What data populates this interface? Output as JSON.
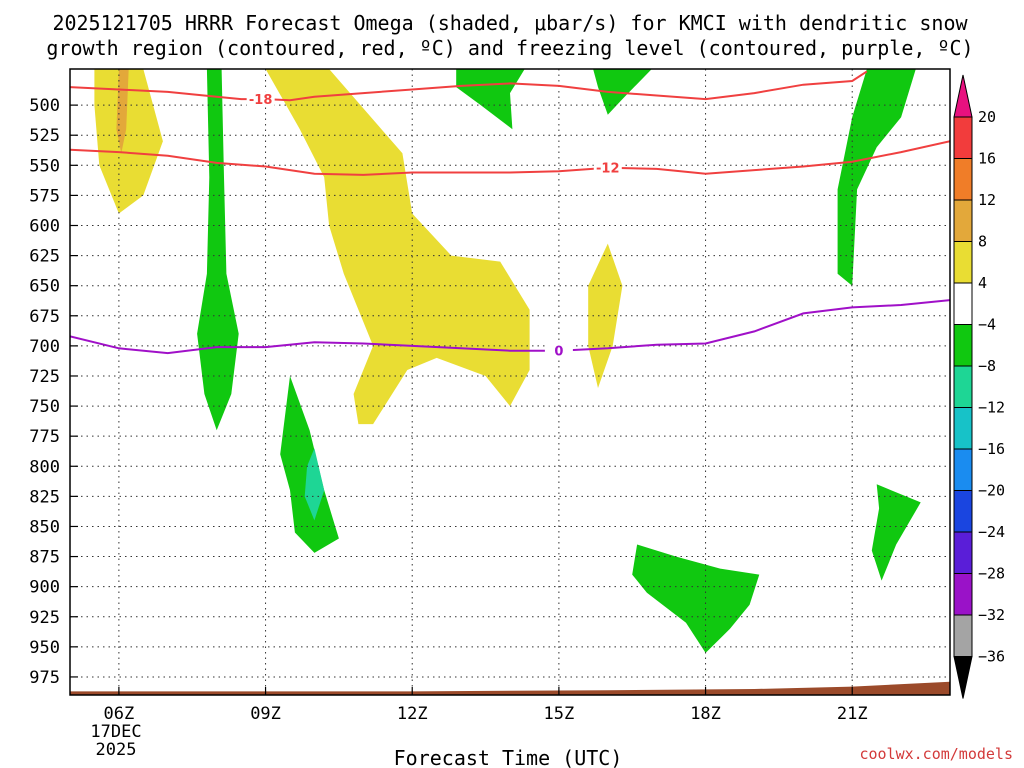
{
  "chart_data": {
    "type": "heatmap",
    "title_line1": "2025121705 HRRR Forecast Omega (shaded, μbar/s) for KMCI with dendritic snow",
    "title_line2": "growth region (contoured, red, ºC) and freezing level (contoured, purple, ºC)",
    "xlabel": "Forecast Time (UTC)",
    "ylabel": "",
    "x_hours": [
      6,
      9,
      12,
      15,
      18,
      21
    ],
    "x_tick_labels": [
      "06Z",
      "09Z",
      "12Z",
      "15Z",
      "18Z",
      "21Z"
    ],
    "date_label_line1": "17DEC",
    "date_label_line2": "2025",
    "xlim": [
      5,
      23
    ],
    "y_levels": [
      500,
      525,
      550,
      575,
      600,
      625,
      650,
      675,
      700,
      725,
      750,
      775,
      800,
      825,
      850,
      875,
      900,
      925,
      950,
      975
    ],
    "y_tick_labels": [
      "500",
      "525",
      "550",
      "575",
      "600",
      "625",
      "650",
      "675",
      "700",
      "725",
      "750",
      "775",
      "800",
      "825",
      "850",
      "875",
      "900",
      "925",
      "950",
      "975"
    ],
    "ylim": [
      470,
      990
    ],
    "grid": true,
    "colorbar": {
      "labels": [
        "20",
        "16",
        "12",
        "8",
        "4",
        "−4",
        "−8",
        "−12",
        "−16",
        "−20",
        "−24",
        "−28",
        "−32",
        "−36"
      ],
      "colors": [
        "#e8117f",
        "#f23c3c",
        "#f07d28",
        "#e3a83a",
        "#e9dd33",
        "#ffffff",
        "#10c810",
        "#1ed695",
        "#17c2c8",
        "#1a8cf0",
        "#1a45e0",
        "#5a1ed8",
        "#9a12c8",
        "#a4a4a4",
        "#000000"
      ]
    },
    "contours": {
      "dgz_labels": [
        "-18",
        "-12"
      ],
      "freezing_label": "0",
      "dgz_top_minus18": [
        [
          5,
          485
        ],
        [
          6,
          487
        ],
        [
          7,
          489
        ],
        [
          8,
          493
        ],
        [
          8.5,
          495
        ],
        [
          9,
          495
        ],
        [
          9.5,
          496
        ],
        [
          10,
          493
        ],
        [
          11,
          490
        ],
        [
          12,
          487
        ],
        [
          13,
          484
        ],
        [
          14,
          482
        ],
        [
          15,
          484
        ],
        [
          16,
          489
        ],
        [
          17,
          492
        ],
        [
          18,
          495
        ],
        [
          19,
          490
        ],
        [
          20,
          483
        ],
        [
          21,
          480
        ],
        [
          21.3,
          472
        ]
      ],
      "dgz_bottom_minus12": [
        [
          5,
          537
        ],
        [
          6,
          539
        ],
        [
          7,
          542
        ],
        [
          8,
          548
        ],
        [
          9,
          551
        ],
        [
          10,
          557
        ],
        [
          11,
          558
        ],
        [
          12,
          556
        ],
        [
          13,
          556
        ],
        [
          14,
          556
        ],
        [
          15,
          555
        ],
        [
          16,
          552
        ],
        [
          17,
          553
        ],
        [
          18,
          557
        ],
        [
          19,
          554
        ],
        [
          20,
          551
        ],
        [
          21,
          547
        ],
        [
          22,
          539
        ],
        [
          23,
          530
        ]
      ],
      "freezing_level": [
        [
          5,
          692
        ],
        [
          6,
          702
        ],
        [
          7,
          706
        ],
        [
          8,
          701
        ],
        [
          9,
          701
        ],
        [
          10,
          697
        ],
        [
          11,
          698
        ],
        [
          12,
          700
        ],
        [
          13,
          702
        ],
        [
          14,
          704
        ],
        [
          15,
          704
        ],
        [
          16,
          702
        ],
        [
          17,
          699
        ],
        [
          18,
          698
        ],
        [
          19,
          688
        ],
        [
          20,
          673
        ],
        [
          21,
          668
        ],
        [
          22,
          666
        ],
        [
          23,
          662
        ]
      ]
    },
    "shaded_regions": [
      {
        "omega_class": "4",
        "points": [
          [
            5.5,
            470
          ],
          [
            6.5,
            470
          ],
          [
            6.9,
            530
          ],
          [
            6.5,
            575
          ],
          [
            6.0,
            590
          ],
          [
            5.6,
            550
          ],
          [
            5.5,
            500
          ]
        ]
      },
      {
        "omega_class": "8",
        "points": [
          [
            6.0,
            470
          ],
          [
            6.2,
            470
          ],
          [
            6.15,
            520
          ],
          [
            6.05,
            540
          ],
          [
            5.95,
            520
          ]
        ]
      },
      {
        "omega_class": "-4",
        "points": [
          [
            7.8,
            470
          ],
          [
            8.1,
            470
          ],
          [
            8.15,
            560
          ],
          [
            8.2,
            640
          ],
          [
            8.45,
            690
          ],
          [
            8.3,
            740
          ],
          [
            8.0,
            770
          ],
          [
            7.75,
            740
          ],
          [
            7.6,
            690
          ],
          [
            7.8,
            640
          ],
          [
            7.85,
            560
          ]
        ]
      },
      {
        "omega_class": "4",
        "points": [
          [
            9,
            470
          ],
          [
            10.3,
            470
          ],
          [
            11.8,
            540
          ],
          [
            12.0,
            590
          ],
          [
            12.8,
            625
          ],
          [
            13.8,
            630
          ],
          [
            14.4,
            670
          ],
          [
            14.4,
            720
          ],
          [
            14.0,
            750
          ],
          [
            13.5,
            725
          ],
          [
            12.5,
            710
          ],
          [
            11.9,
            720
          ],
          [
            11.2,
            765
          ],
          [
            10.9,
            765
          ],
          [
            10.8,
            740
          ],
          [
            11.2,
            700
          ],
          [
            10.6,
            640
          ],
          [
            10.3,
            600
          ],
          [
            10.2,
            560
          ],
          [
            9.7,
            520
          ]
        ]
      },
      {
        "omega_class": "-4",
        "points": [
          [
            12.9,
            470
          ],
          [
            14.3,
            470
          ],
          [
            14.0,
            490
          ],
          [
            14.05,
            520
          ],
          [
            13.4,
            500
          ],
          [
            12.9,
            485
          ]
        ]
      },
      {
        "omega_class": "-4",
        "points": [
          [
            15.7,
            470
          ],
          [
            16.9,
            470
          ],
          [
            16.3,
            495
          ],
          [
            16.0,
            508
          ],
          [
            15.8,
            485
          ]
        ]
      },
      {
        "omega_class": "4",
        "points": [
          [
            16.0,
            615
          ],
          [
            16.3,
            650
          ],
          [
            16.1,
            700
          ],
          [
            15.8,
            735
          ],
          [
            15.6,
            700
          ],
          [
            15.6,
            650
          ]
        ]
      },
      {
        "omega_class": "-4",
        "points": [
          [
            9.5,
            725
          ],
          [
            9.9,
            770
          ],
          [
            10.2,
            820
          ],
          [
            10.5,
            860
          ],
          [
            10.0,
            872
          ],
          [
            9.6,
            855
          ],
          [
            9.5,
            820
          ],
          [
            9.3,
            790
          ]
        ]
      },
      {
        "omega_class": "-8",
        "points": [
          [
            10.0,
            785
          ],
          [
            10.2,
            820
          ],
          [
            10.0,
            845
          ],
          [
            9.8,
            825
          ],
          [
            9.85,
            800
          ]
        ]
      },
      {
        "omega_class": "-4",
        "points": [
          [
            21.3,
            470
          ],
          [
            22.3,
            470
          ],
          [
            22.0,
            510
          ],
          [
            21.5,
            535
          ],
          [
            21.1,
            570
          ],
          [
            21.0,
            650
          ],
          [
            20.7,
            640
          ],
          [
            20.7,
            570
          ],
          [
            21.0,
            510
          ]
        ]
      },
      {
        "omega_class": "-4",
        "points": [
          [
            16.6,
            865
          ],
          [
            17.4,
            875
          ],
          [
            18.3,
            885
          ],
          [
            19.1,
            890
          ],
          [
            18.9,
            915
          ],
          [
            18.5,
            935
          ],
          [
            18.0,
            955
          ],
          [
            17.6,
            930
          ],
          [
            16.8,
            905
          ],
          [
            16.5,
            890
          ]
        ]
      },
      {
        "omega_class": "-4",
        "points": [
          [
            21.5,
            815
          ],
          [
            22.4,
            830
          ],
          [
            21.9,
            865
          ],
          [
            21.6,
            895
          ],
          [
            21.4,
            870
          ],
          [
            21.55,
            835
          ]
        ]
      }
    ],
    "terrain_fill_color": "#9b4a2a"
  },
  "credit": "coolwx.com/models"
}
